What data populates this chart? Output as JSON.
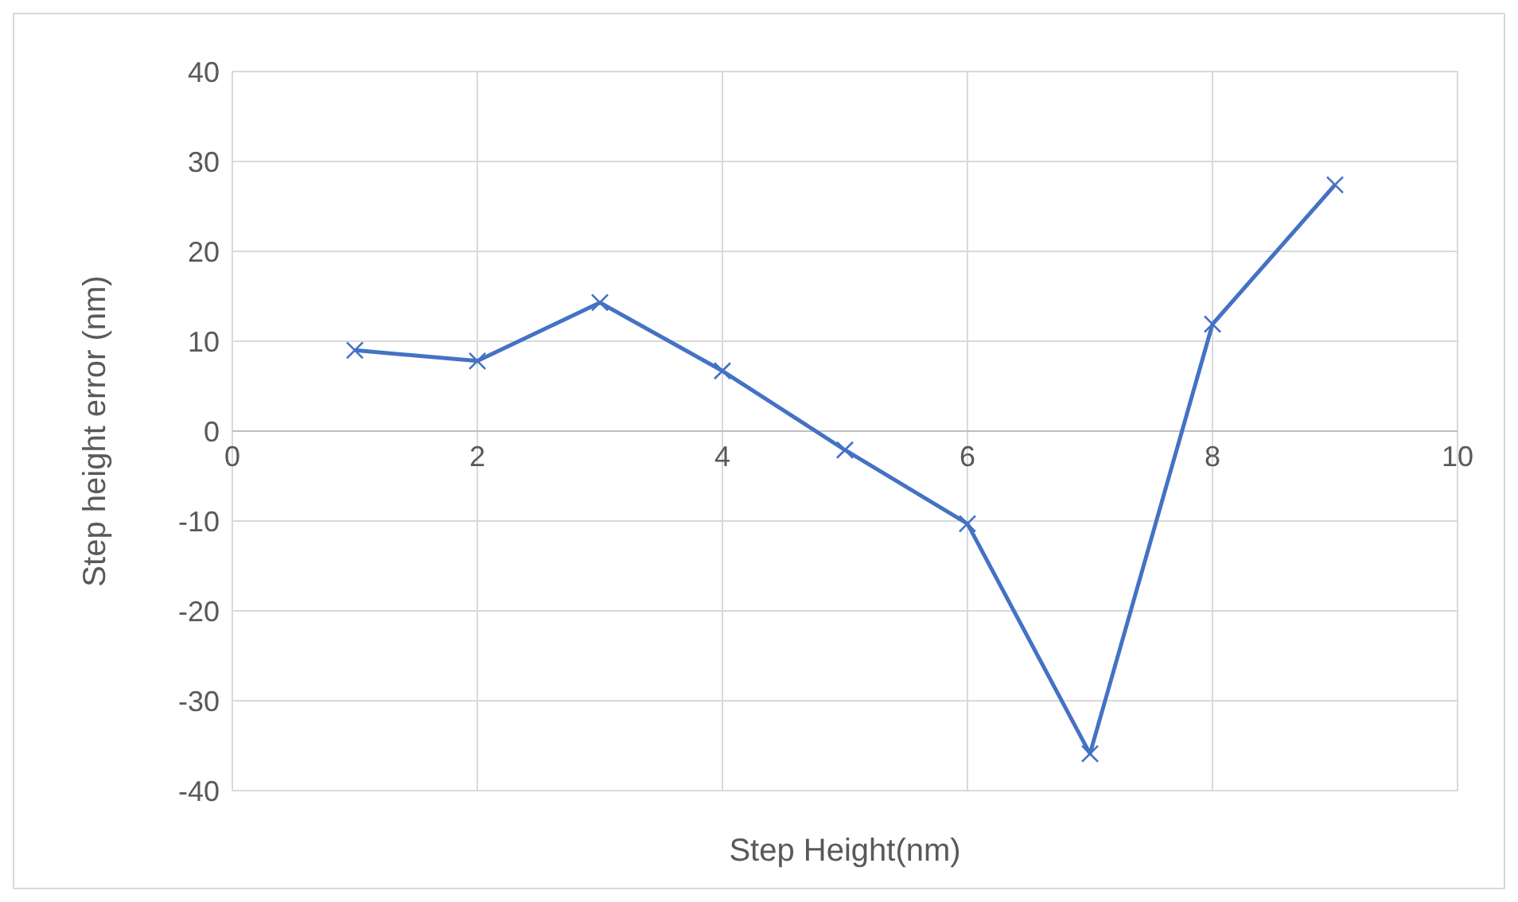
{
  "chart_data": {
    "type": "line",
    "xlabel": "Step Height(nm)",
    "ylabel": "Step height error (nm)",
    "x": [
      1,
      2,
      3,
      4,
      5,
      6,
      7,
      8,
      9
    ],
    "series": [
      {
        "color": "#4472c4",
        "values": [
          9.0,
          7.8,
          14.3,
          6.7,
          -2.1,
          -10.3,
          -35.9,
          11.9,
          27.4
        ]
      }
    ],
    "xlim": [
      0,
      10
    ],
    "xticks": [
      0,
      2,
      4,
      6,
      8,
      10
    ],
    "ylim": [
      -40,
      40
    ],
    "yticks": [
      -40,
      -30,
      -20,
      -10,
      0,
      10,
      20,
      30,
      40
    ],
    "grid": true,
    "marker": "cross",
    "line_style": "solid"
  }
}
